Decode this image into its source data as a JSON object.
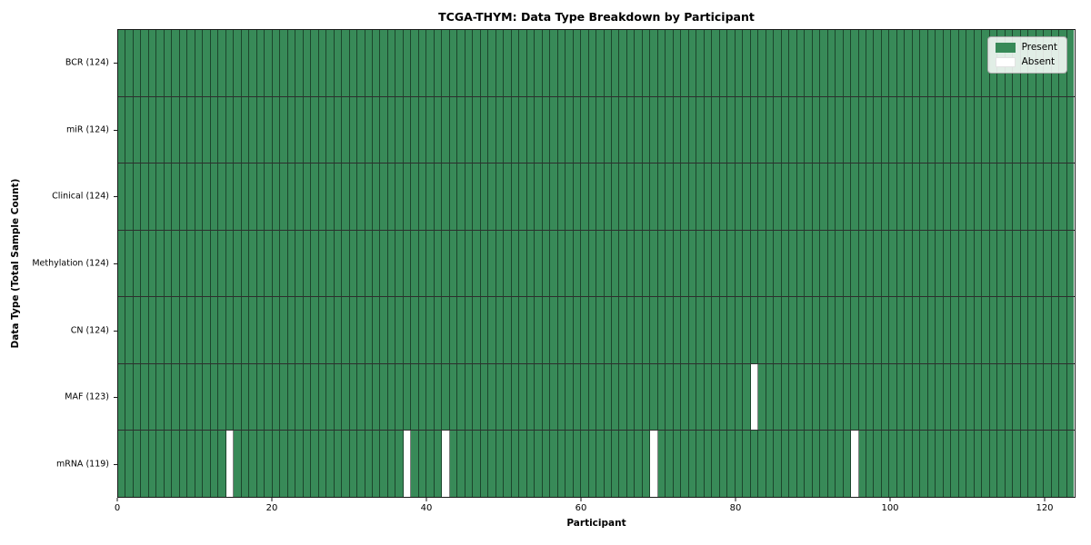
{
  "title": "TCGA-THYM: Data Type Breakdown by Participant",
  "xlabel": "Participant",
  "ylabel": "Data Type (Total Sample Count)",
  "legend": {
    "present_label": "Present",
    "absent_label": "Absent",
    "position": "upper right"
  },
  "colors": {
    "present": "#388a58",
    "absent": "#ffffff",
    "grid_line": "rgba(0,0,0,0.5)",
    "row_separator": "rgba(0,0,0,0.82)",
    "axis": "#1a1a1a"
  },
  "chart_data": {
    "type": "heatmap",
    "title": "TCGA-THYM: Data Type Breakdown by Participant",
    "xlabel": "Participant",
    "ylabel": "Data Type (Total Sample Count)",
    "n_participants": 124,
    "x_range": [
      0,
      124
    ],
    "x_ticks": [
      0,
      20,
      40,
      60,
      80,
      100,
      120
    ],
    "grid": "cell-borders",
    "legend_entries": [
      "Present",
      "Absent"
    ],
    "legend_position": "upper right",
    "rows": [
      {
        "label": "BCR (124)",
        "data_type": "BCR",
        "total": 124,
        "absent_participants": []
      },
      {
        "label": "miR (124)",
        "data_type": "miR",
        "total": 124,
        "absent_participants": []
      },
      {
        "label": "Clinical (124)",
        "data_type": "Clinical",
        "total": 124,
        "absent_participants": []
      },
      {
        "label": "Methylation (124)",
        "data_type": "Methylation",
        "total": 124,
        "absent_participants": []
      },
      {
        "label": "CN (124)",
        "data_type": "CN",
        "total": 124,
        "absent_participants": []
      },
      {
        "label": "MAF (123)",
        "data_type": "MAF",
        "total": 123,
        "absent_participants": [
          82
        ]
      },
      {
        "label": "mRNA (119)",
        "data_type": "mRNA",
        "total": 119,
        "absent_participants": [
          14,
          37,
          42,
          69,
          95
        ]
      }
    ]
  }
}
